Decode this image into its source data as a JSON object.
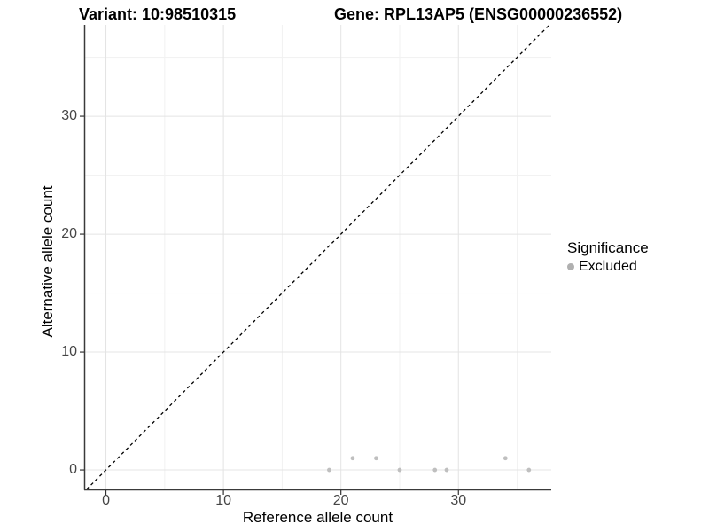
{
  "header": {
    "variant_title": "Variant: 10:98510315",
    "gene_title": "Gene: RPL13AP5 (ENSG00000236552)"
  },
  "axes": {
    "x_label": "Reference allele count",
    "y_label": "Alternative allele count"
  },
  "legend": {
    "title": "Significance",
    "items": [
      {
        "label": "Excluded",
        "color": "#b0b0b0"
      }
    ]
  },
  "chart_data": {
    "type": "scatter",
    "title": "",
    "xlabel": "Reference allele count",
    "ylabel": "Alternative allele count",
    "x_range": [
      -1.85,
      37.9
    ],
    "y_range": [
      -1.65,
      37.75
    ],
    "x_ticks": [
      0,
      10,
      20,
      30
    ],
    "y_ticks": [
      0,
      10,
      20,
      30
    ],
    "x_minor_ticks": [
      5,
      15,
      25,
      35
    ],
    "y_minor_ticks": [
      5,
      15,
      25,
      35
    ],
    "grid": true,
    "legend_position": "right",
    "series": [
      {
        "name": "Excluded",
        "color": "#bfbfbf",
        "points": [
          {
            "x": 19,
            "y": 0
          },
          {
            "x": 21,
            "y": 1
          },
          {
            "x": 23,
            "y": 1
          },
          {
            "x": 25,
            "y": 0
          },
          {
            "x": 28,
            "y": 0
          },
          {
            "x": 29,
            "y": 0
          },
          {
            "x": 34,
            "y": 1
          },
          {
            "x": 36,
            "y": 0
          }
        ]
      }
    ],
    "reference_line": {
      "type": "identity",
      "style": "dashed",
      "color": "#000000"
    },
    "colors": {
      "grid_major": "#e4e4e4",
      "grid_minor": "#f1f1f1",
      "axis_line": "#3a3a3a",
      "tick_mark": "#333333",
      "tick_label": "#454545",
      "background": "#ffffff"
    }
  }
}
